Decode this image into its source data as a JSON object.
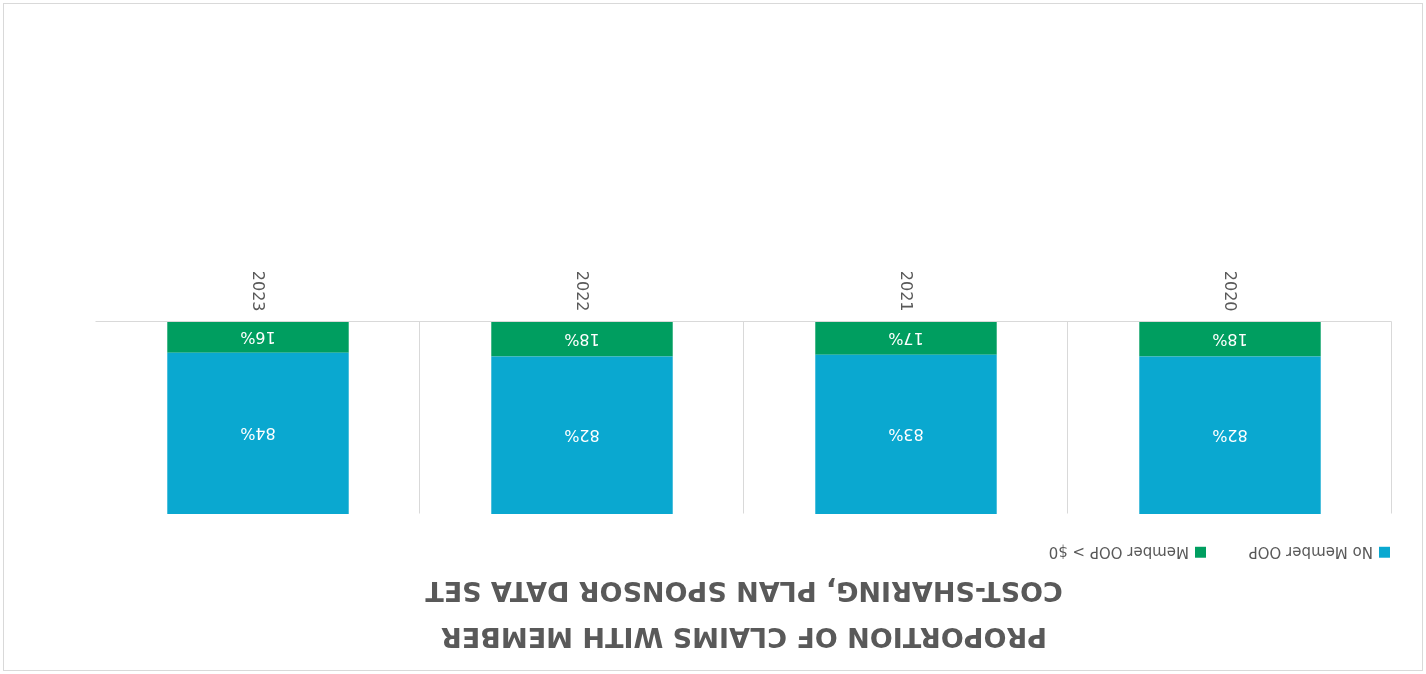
{
  "chart_data": {
    "type": "bar",
    "title": "PROPORTION OF CLAIMS WITH MEMBER COST-SHARING, PLAN SPONSOR DATA SET",
    "categories": [
      "2023",
      "2022",
      "2021",
      "2020"
    ],
    "stacked": true,
    "ylim": [
      0,
      100
    ],
    "grid": "x",
    "legend": "bottom",
    "series": [
      {
        "name": "Member OOP > $0",
        "color": "#009e60",
        "values": [
          16,
          18,
          17,
          18
        ],
        "value_labels": [
          "16%",
          "18%",
          "17%",
          "18%"
        ]
      },
      {
        "name": "No Member OOP",
        "color": "#0aa8d0",
        "values": [
          84,
          82,
          83,
          82
        ],
        "value_labels": [
          "84%",
          "82%",
          "83%",
          "82%"
        ]
      }
    ]
  }
}
